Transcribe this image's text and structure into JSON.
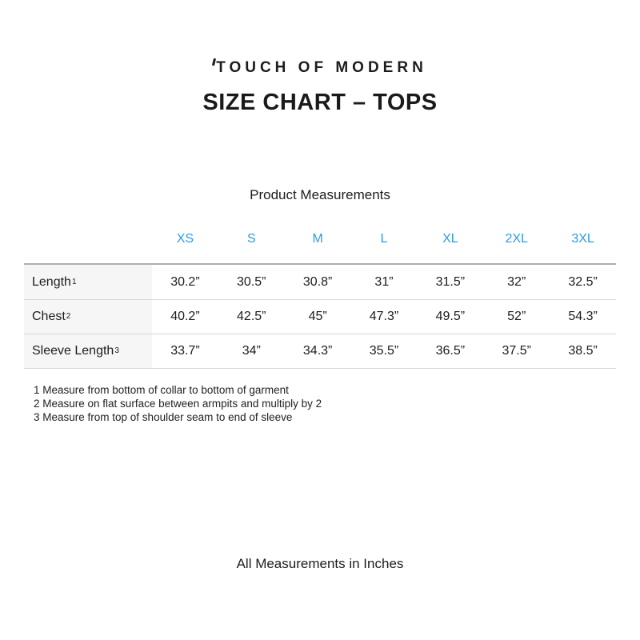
{
  "header": {
    "brand": "TOUCH OF MODERN",
    "title": "SIZE CHART – TOPS"
  },
  "table": {
    "caption": "Product Measurements",
    "sizes": [
      "XS",
      "S",
      "M",
      "L",
      "XL",
      "2XL",
      "3XL"
    ],
    "rows": [
      {
        "label": "Length",
        "sup": "1",
        "values": [
          "30.2”",
          "30.5”",
          "30.8”",
          "31”",
          "31.5”",
          "32”",
          "32.5”"
        ]
      },
      {
        "label": "Chest",
        "sup": "2",
        "values": [
          "40.2”",
          "42.5”",
          "45”",
          "47.3”",
          "49.5”",
          "52”",
          "54.3”"
        ]
      },
      {
        "label": "Sleeve Length",
        "sup": "3",
        "values": [
          "33.7”",
          "34”",
          "34.3”",
          "35.5”",
          "36.5”",
          "37.5”",
          "38.5”"
        ]
      }
    ],
    "footnotes": [
      "1 Measure from bottom of collar to bottom of garment",
      "2 Measure on flat surface between armpits and multiply by 2",
      "3 Measure from top of shoulder seam to end of sleeve"
    ]
  },
  "footer": {
    "note": "All Measurements in Inches"
  },
  "colors": {
    "accent_blue": "#2d9ce0",
    "text": "#1d1d1d",
    "label_column_bg": "#f6f6f6",
    "divider": "#d8d8d8",
    "top_divider": "#b0b0b0"
  }
}
